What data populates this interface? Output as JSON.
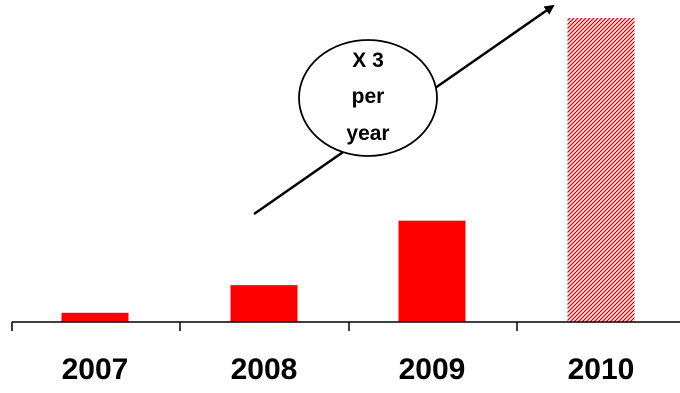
{
  "chart_data": {
    "type": "bar",
    "categories": [
      "2007",
      "2008",
      "2009",
      "2010"
    ],
    "values": [
      1,
      4,
      11,
      33
    ],
    "ylim": [
      0,
      33
    ],
    "grid": false,
    "legend": "none",
    "title": "",
    "xlabel": "",
    "ylabel": "",
    "colors": {
      "bar": "#ff0000",
      "projected_bar": "#ff0000",
      "axis": "#000000",
      "annotation": "#000000"
    },
    "projected_categories": [
      "2010"
    ],
    "annotation": {
      "lines": [
        "X 3",
        "per",
        "year"
      ],
      "shape": "ellipse",
      "arrow": "up-right"
    }
  }
}
